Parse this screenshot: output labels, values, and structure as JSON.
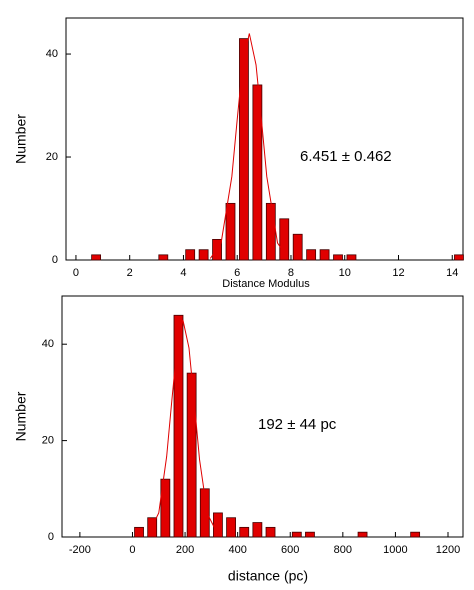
{
  "chart_data": [
    {
      "type": "bar",
      "xlabel": "Distance Modulus",
      "ylabel": "Number",
      "annotation": "6.451 ± 0.462",
      "x": [
        0.75,
        3.25,
        4.25,
        4.75,
        5.25,
        5.75,
        6.25,
        6.75,
        7.25,
        7.75,
        8.25,
        8.75,
        9.25,
        9.75,
        10.25,
        14.25
      ],
      "values": [
        1,
        1,
        2,
        2,
        4,
        11,
        43,
        34,
        11,
        8,
        5,
        2,
        2,
        1,
        1,
        1
      ],
      "color": "#e00000",
      "fit": {
        "color": "#e00000",
        "x": [
          5.0,
          5.4,
          5.8,
          6.0,
          6.2,
          6.45,
          6.7,
          6.9,
          7.1,
          7.5,
          7.9
        ],
        "values": [
          0.3,
          3.3,
          16.2,
          27.3,
          37.9,
          44,
          37.9,
          27.3,
          16.2,
          3.3,
          0.3
        ]
      },
      "xlim": [
        -0.37,
        14.4
      ],
      "xticks": [
        0,
        2,
        4,
        6,
        8,
        10,
        12,
        14
      ],
      "ylim": [
        0,
        47
      ],
      "yticks": [
        0,
        20,
        40
      ]
    },
    {
      "type": "bar",
      "xlabel": "distance (pc)",
      "ylabel": "Number",
      "annotation": "192 ± 44 pc",
      "x": [
        25,
        75,
        125,
        175,
        225,
        275,
        325,
        375,
        425,
        475,
        525,
        625,
        675,
        875,
        1075
      ],
      "values": [
        2,
        4,
        12,
        46,
        34,
        10,
        5,
        4,
        2,
        3,
        2,
        1,
        1,
        1,
        1
      ],
      "color": "#e00000",
      "fit": {
        "color": "#e00000",
        "x": [
          60,
          100,
          130,
          150,
          170,
          192,
          215,
          235,
          255,
          285,
          325
        ],
        "values": [
          0.5,
          5.0,
          16.7,
          28.5,
          39.7,
          45,
          39.2,
          27.9,
          16.1,
          4.8,
          0.5
        ]
      },
      "xlim": [
        -268,
        1257
      ],
      "xticks": [
        -200,
        0,
        200,
        400,
        600,
        800,
        1000,
        1200
      ],
      "ylim": [
        0,
        50
      ],
      "yticks": [
        0,
        20,
        40
      ]
    }
  ]
}
